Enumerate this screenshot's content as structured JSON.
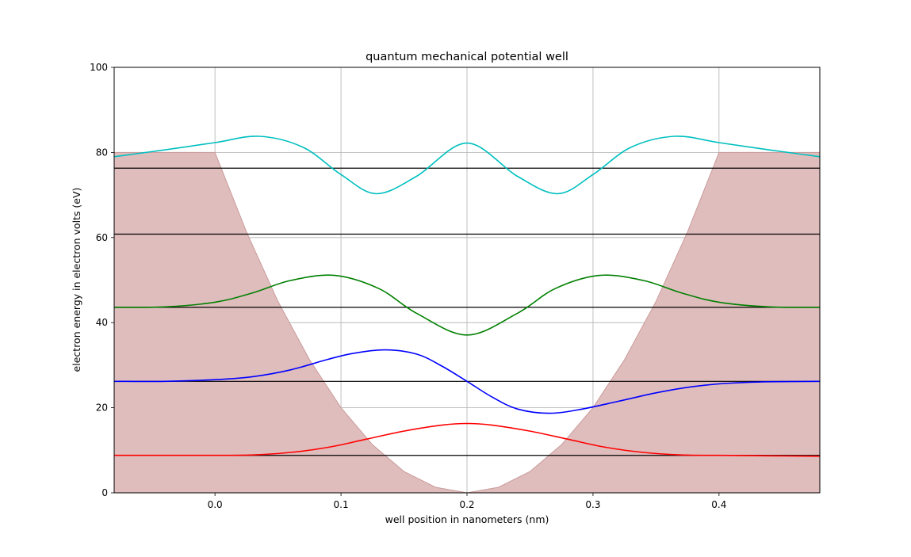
{
  "chart_data": {
    "type": "line",
    "title": "quantum mechanical potential well",
    "xlabel": "well position in nanometers (nm)",
    "ylabel": "electron energy in electron volts (eV)",
    "xlim": [
      -0.08,
      0.48
    ],
    "ylim": [
      0,
      100
    ],
    "xticks": [
      0.0,
      0.1,
      0.2,
      0.3,
      0.4
    ],
    "xtick_labels": [
      "0.0",
      "0.1",
      "0.2",
      "0.3",
      "0.4"
    ],
    "yticks": [
      0,
      20,
      40,
      60,
      80,
      100
    ],
    "ytick_labels": [
      "0",
      "20",
      "40",
      "60",
      "80",
      "100"
    ],
    "grid": true,
    "legend": "none",
    "potential": {
      "fill_color": "#e0bdbd",
      "edge_color": "#c99a9a",
      "x": [
        -0.08,
        0.0,
        0.025,
        0.05,
        0.075,
        0.1,
        0.125,
        0.15,
        0.175,
        0.2,
        0.225,
        0.25,
        0.275,
        0.3,
        0.325,
        0.35,
        0.375,
        0.4,
        0.48
      ],
      "y": [
        80,
        80,
        61.3,
        45.0,
        31.3,
        20.0,
        11.3,
        5.0,
        1.3,
        0,
        1.3,
        5.0,
        11.3,
        20.0,
        31.3,
        45.0,
        61.3,
        80,
        80
      ]
    },
    "energy_levels": {
      "color": "#000000",
      "values": [
        8.8,
        26.2,
        43.6,
        60.8,
        76.3
      ]
    },
    "series": [
      {
        "color": "#ff0000",
        "x": [
          -0.08,
          -0.04,
          0.0,
          0.03,
          0.06,
          0.09,
          0.12,
          0.15,
          0.18,
          0.2,
          0.22,
          0.25,
          0.28,
          0.31,
          0.34,
          0.37,
          0.4,
          0.44,
          0.48
        ],
        "y": [
          8.8,
          8.8,
          8.8,
          8.9,
          9.5,
          10.7,
          12.6,
          14.5,
          15.9,
          16.3,
          15.9,
          14.5,
          12.6,
          10.7,
          9.5,
          8.9,
          8.8,
          8.7,
          8.6
        ]
      },
      {
        "color": "#0000ff",
        "x": [
          -0.08,
          -0.04,
          0.0,
          0.03,
          0.06,
          0.09,
          0.11,
          0.135,
          0.16,
          0.18,
          0.2,
          0.22,
          0.24,
          0.265,
          0.29,
          0.32,
          0.35,
          0.38,
          0.41,
          0.44,
          0.48
        ],
        "y": [
          26.2,
          26.2,
          26.6,
          27.3,
          28.9,
          31.4,
          32.8,
          33.6,
          32.6,
          29.8,
          26.2,
          22.5,
          19.7,
          18.7,
          19.6,
          21.5,
          23.5,
          25.0,
          25.8,
          26.1,
          26.2
        ]
      },
      {
        "color": "#008000",
        "x": [
          -0.08,
          -0.04,
          0.0,
          0.03,
          0.06,
          0.095,
          0.13,
          0.16,
          0.2,
          0.24,
          0.27,
          0.305,
          0.34,
          0.37,
          0.4,
          0.44,
          0.48
        ],
        "y": [
          43.6,
          43.7,
          44.8,
          47.0,
          49.9,
          51.1,
          48.0,
          42.2,
          37.1,
          42.2,
          48.0,
          51.1,
          49.9,
          47.0,
          44.8,
          43.7,
          43.6
        ]
      },
      {
        "color": "#00bfbf",
        "x": [
          -0.08,
          -0.04,
          0.0,
          0.035,
          0.07,
          0.1,
          0.128,
          0.16,
          0.2,
          0.24,
          0.272,
          0.3,
          0.33,
          0.365,
          0.4,
          0.44,
          0.48
        ],
        "y": [
          79.0,
          80.6,
          82.3,
          83.8,
          81.2,
          74.8,
          70.3,
          74.4,
          82.2,
          74.4,
          70.3,
          74.8,
          81.2,
          83.8,
          82.3,
          80.6,
          79.0
        ]
      }
    ]
  }
}
